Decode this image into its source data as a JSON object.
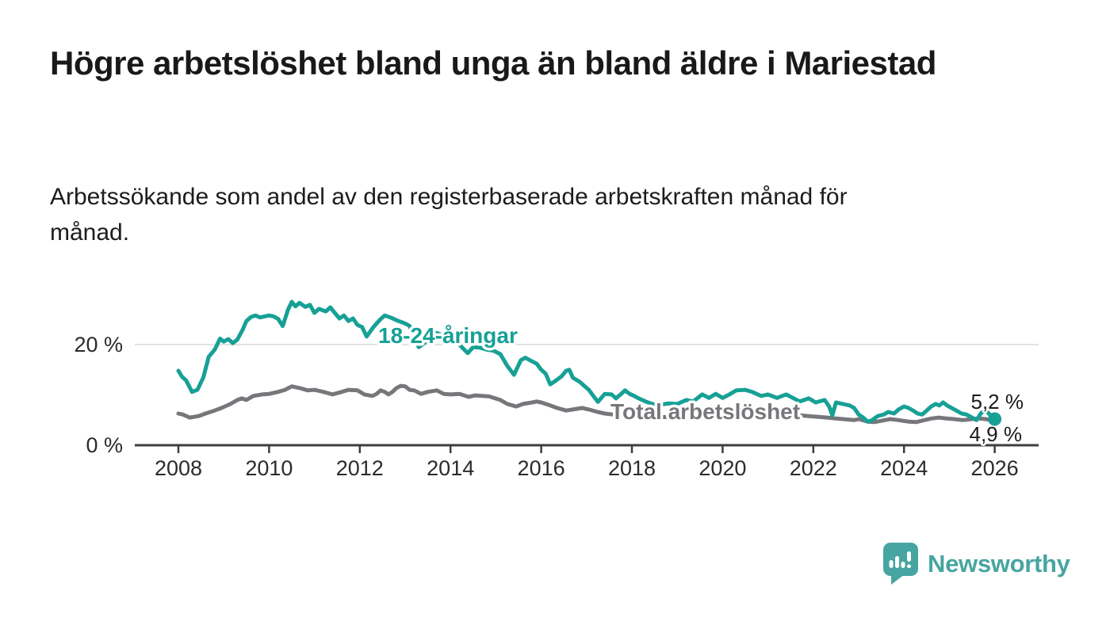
{
  "header": {
    "title": "Högre arbetslöshet bland unga än bland äldre i Mariestad",
    "subtitle": "Arbetssökande som andel av den registerbaserade arbetskraften månad för månad."
  },
  "footer": {
    "brand": "Newsworthy",
    "brand_color": "#47a5a1",
    "logo_icon": "speech-bubble-bar-chart"
  },
  "colors": {
    "youth_line": "#17a096",
    "total_line": "#77777b",
    "gridline": "#d9d9d9",
    "axis": "#3e3e3e",
    "text_dark": "#1a1a1a",
    "tick_label": "#2b2b2b"
  },
  "chart_data": {
    "type": "line",
    "title": "Högre arbetslöshet bland unga än bland äldre i Mariestad",
    "xlabel": "",
    "ylabel": "",
    "unit": "%",
    "ylim": [
      0,
      30
    ],
    "grid": "single-horizontal-gridline-at-20",
    "legend_position": "inline-labels-on-lines",
    "y_axis": {
      "ticks": [
        {
          "v": 0,
          "label": "0 %"
        },
        {
          "v": 20,
          "label": "20 %"
        }
      ],
      "gridlines": [
        20
      ]
    },
    "x_axis": {
      "ticks": [
        {
          "t": 2008,
          "label": "2008"
        },
        {
          "t": 2010,
          "label": "2010"
        },
        {
          "t": 2012,
          "label": "2012"
        },
        {
          "t": 2014,
          "label": "2014"
        },
        {
          "t": 2016,
          "label": "2016"
        },
        {
          "t": 2018,
          "label": "2018"
        },
        {
          "t": 2020,
          "label": "2020"
        },
        {
          "t": 2022,
          "label": "2022"
        },
        {
          "t": 2024,
          "label": "2024"
        },
        {
          "t": 2026,
          "label": "2026"
        }
      ]
    },
    "series": [
      {
        "id": "total",
        "name": "Total arbetslöshet",
        "color": "#77777b",
        "end_label": "4,9 %",
        "end_dot": false,
        "points": [
          [
            2008.0,
            6.3
          ],
          [
            2008.1,
            6.1
          ],
          [
            2008.25,
            5.5
          ],
          [
            2008.45,
            5.8
          ],
          [
            2008.6,
            6.3
          ],
          [
            2008.8,
            6.9
          ],
          [
            2008.95,
            7.4
          ],
          [
            2009.15,
            8.2
          ],
          [
            2009.3,
            9.0
          ],
          [
            2009.4,
            9.3
          ],
          [
            2009.5,
            9.0
          ],
          [
            2009.65,
            9.8
          ],
          [
            2009.85,
            10.1
          ],
          [
            2010.0,
            10.2
          ],
          [
            2010.2,
            10.6
          ],
          [
            2010.35,
            11.0
          ],
          [
            2010.5,
            11.7
          ],
          [
            2010.7,
            11.3
          ],
          [
            2010.85,
            10.9
          ],
          [
            2011.0,
            11.0
          ],
          [
            2011.2,
            10.6
          ],
          [
            2011.4,
            10.1
          ],
          [
            2011.6,
            10.6
          ],
          [
            2011.75,
            11.0
          ],
          [
            2011.95,
            10.9
          ],
          [
            2012.1,
            10.1
          ],
          [
            2012.28,
            9.8
          ],
          [
            2012.37,
            10.2
          ],
          [
            2012.46,
            10.9
          ],
          [
            2012.55,
            10.6
          ],
          [
            2012.63,
            10.1
          ],
          [
            2012.72,
            10.6
          ],
          [
            2012.8,
            11.3
          ],
          [
            2012.9,
            11.8
          ],
          [
            2013.0,
            11.7
          ],
          [
            2013.1,
            11.0
          ],
          [
            2013.2,
            10.9
          ],
          [
            2013.35,
            10.2
          ],
          [
            2013.5,
            10.6
          ],
          [
            2013.7,
            10.9
          ],
          [
            2013.85,
            10.2
          ],
          [
            2014.0,
            10.1
          ],
          [
            2014.2,
            10.2
          ],
          [
            2014.4,
            9.6
          ],
          [
            2014.55,
            9.9
          ],
          [
            2014.7,
            9.8
          ],
          [
            2014.85,
            9.7
          ],
          [
            2015.1,
            9.0
          ],
          [
            2015.25,
            8.2
          ],
          [
            2015.45,
            7.7
          ],
          [
            2015.6,
            8.2
          ],
          [
            2015.8,
            8.5
          ],
          [
            2015.9,
            8.7
          ],
          [
            2016.0,
            8.5
          ],
          [
            2016.2,
            7.9
          ],
          [
            2016.35,
            7.4
          ],
          [
            2016.55,
            6.9
          ],
          [
            2016.7,
            7.1
          ],
          [
            2016.9,
            7.4
          ],
          [
            2017.05,
            7.1
          ],
          [
            2017.25,
            6.6
          ],
          [
            2017.4,
            6.3
          ],
          [
            2017.6,
            6.1
          ],
          [
            2017.8,
            6.0
          ],
          [
            2018.0,
            5.9
          ],
          [
            2018.25,
            5.7
          ],
          [
            2018.5,
            5.5
          ],
          [
            2018.75,
            5.6
          ],
          [
            2019.0,
            5.5
          ],
          [
            2019.25,
            5.7
          ],
          [
            2019.5,
            5.8
          ],
          [
            2019.75,
            5.9
          ],
          [
            2020.0,
            6.0
          ],
          [
            2020.25,
            6.6
          ],
          [
            2020.5,
            6.9
          ],
          [
            2020.75,
            6.7
          ],
          [
            2021.0,
            6.5
          ],
          [
            2021.25,
            6.3
          ],
          [
            2021.5,
            6.1
          ],
          [
            2021.75,
            5.9
          ],
          [
            2022.0,
            5.7
          ],
          [
            2022.15,
            5.6
          ],
          [
            2022.3,
            5.5
          ],
          [
            2022.5,
            5.3
          ],
          [
            2022.65,
            5.2
          ],
          [
            2022.9,
            5.0
          ],
          [
            2023.0,
            5.2
          ],
          [
            2023.2,
            4.7
          ],
          [
            2023.35,
            4.6
          ],
          [
            2023.52,
            4.9
          ],
          [
            2023.7,
            5.2
          ],
          [
            2023.88,
            5.0
          ],
          [
            2024.1,
            4.7
          ],
          [
            2024.27,
            4.6
          ],
          [
            2024.45,
            5.0
          ],
          [
            2024.6,
            5.3
          ],
          [
            2024.77,
            5.5
          ],
          [
            2024.94,
            5.3
          ],
          [
            2025.1,
            5.2
          ],
          [
            2025.3,
            5.0
          ],
          [
            2025.5,
            5.2
          ],
          [
            2025.65,
            5.3
          ],
          [
            2025.8,
            5.2
          ],
          [
            2025.95,
            4.9
          ],
          [
            2026.0,
            4.9
          ]
        ]
      },
      {
        "id": "youth",
        "name": "18-24-åringar",
        "color": "#17a096",
        "end_label": "5,2 %",
        "end_dot": true,
        "points": [
          [
            2008.0,
            14.8
          ],
          [
            2008.08,
            13.6
          ],
          [
            2008.17,
            12.9
          ],
          [
            2008.3,
            10.6
          ],
          [
            2008.42,
            11.0
          ],
          [
            2008.55,
            13.5
          ],
          [
            2008.67,
            17.6
          ],
          [
            2008.8,
            19.0
          ],
          [
            2008.92,
            21.2
          ],
          [
            2009.0,
            20.6
          ],
          [
            2009.1,
            21.1
          ],
          [
            2009.2,
            20.3
          ],
          [
            2009.3,
            21.0
          ],
          [
            2009.42,
            23.0
          ],
          [
            2009.5,
            24.7
          ],
          [
            2009.6,
            25.5
          ],
          [
            2009.7,
            25.8
          ],
          [
            2009.8,
            25.4
          ],
          [
            2009.9,
            25.6
          ],
          [
            2010.0,
            25.8
          ],
          [
            2010.1,
            25.6
          ],
          [
            2010.2,
            25.1
          ],
          [
            2010.3,
            23.7
          ],
          [
            2010.42,
            27.0
          ],
          [
            2010.5,
            28.5
          ],
          [
            2010.58,
            27.6
          ],
          [
            2010.67,
            28.3
          ],
          [
            2010.8,
            27.5
          ],
          [
            2010.9,
            27.9
          ],
          [
            2011.0,
            26.3
          ],
          [
            2011.1,
            27.1
          ],
          [
            2011.25,
            26.6
          ],
          [
            2011.35,
            27.4
          ],
          [
            2011.45,
            26.3
          ],
          [
            2011.55,
            25.2
          ],
          [
            2011.65,
            25.8
          ],
          [
            2011.75,
            24.7
          ],
          [
            2011.85,
            25.2
          ],
          [
            2011.95,
            23.9
          ],
          [
            2012.05,
            23.5
          ],
          [
            2012.15,
            21.6
          ],
          [
            2012.3,
            23.5
          ],
          [
            2012.45,
            25.0
          ],
          [
            2012.55,
            25.8
          ],
          [
            2012.7,
            25.3
          ],
          [
            2012.85,
            24.7
          ],
          [
            2013.0,
            24.2
          ],
          [
            2013.1,
            23.7
          ],
          [
            2013.2,
            21.5
          ],
          [
            2013.3,
            19.5
          ],
          [
            2013.45,
            20.5
          ],
          [
            2013.55,
            21.8
          ],
          [
            2013.7,
            22.3
          ],
          [
            2013.85,
            21.8
          ],
          [
            2014.0,
            21.5
          ],
          [
            2014.1,
            21.0
          ],
          [
            2014.25,
            19.5
          ],
          [
            2014.38,
            18.3
          ],
          [
            2014.5,
            19.5
          ],
          [
            2014.65,
            19.4
          ],
          [
            2014.8,
            19.0
          ],
          [
            2014.95,
            18.8
          ],
          [
            2015.1,
            18.1
          ],
          [
            2015.25,
            15.8
          ],
          [
            2015.4,
            14.0
          ],
          [
            2015.55,
            16.9
          ],
          [
            2015.65,
            17.4
          ],
          [
            2015.75,
            16.9
          ],
          [
            2015.9,
            16.2
          ],
          [
            2016.0,
            15.0
          ],
          [
            2016.1,
            14.2
          ],
          [
            2016.2,
            12.1
          ],
          [
            2016.3,
            12.7
          ],
          [
            2016.45,
            13.7
          ],
          [
            2016.55,
            14.8
          ],
          [
            2016.62,
            15.0
          ],
          [
            2016.7,
            13.4
          ],
          [
            2016.85,
            12.6
          ],
          [
            2016.95,
            11.8
          ],
          [
            2017.05,
            11.0
          ],
          [
            2017.15,
            9.8
          ],
          [
            2017.25,
            8.6
          ],
          [
            2017.4,
            10.2
          ],
          [
            2017.55,
            10.1
          ],
          [
            2017.65,
            9.3
          ],
          [
            2017.75,
            10.1
          ],
          [
            2017.85,
            10.9
          ],
          [
            2017.95,
            10.2
          ],
          [
            2018.05,
            9.8
          ],
          [
            2018.15,
            9.3
          ],
          [
            2018.3,
            8.7
          ],
          [
            2018.45,
            8.2
          ],
          [
            2018.6,
            8.0
          ],
          [
            2018.8,
            8.3
          ],
          [
            2019.0,
            8.2
          ],
          [
            2019.2,
            9.0
          ],
          [
            2019.35,
            8.7
          ],
          [
            2019.55,
            10.1
          ],
          [
            2019.7,
            9.4
          ],
          [
            2019.85,
            10.2
          ],
          [
            2020.0,
            9.4
          ],
          [
            2020.15,
            10.1
          ],
          [
            2020.3,
            10.9
          ],
          [
            2020.5,
            11.0
          ],
          [
            2020.65,
            10.6
          ],
          [
            2020.85,
            9.8
          ],
          [
            2021.0,
            10.1
          ],
          [
            2021.2,
            9.4
          ],
          [
            2021.4,
            10.1
          ],
          [
            2021.55,
            9.4
          ],
          [
            2021.7,
            8.7
          ],
          [
            2021.9,
            9.3
          ],
          [
            2022.05,
            8.5
          ],
          [
            2022.25,
            9.0
          ],
          [
            2022.35,
            7.7
          ],
          [
            2022.42,
            5.9
          ],
          [
            2022.5,
            8.5
          ],
          [
            2022.65,
            8.2
          ],
          [
            2022.8,
            7.9
          ],
          [
            2022.9,
            7.4
          ],
          [
            2023.0,
            6.1
          ],
          [
            2023.1,
            5.5
          ],
          [
            2023.2,
            4.7
          ],
          [
            2023.3,
            5.0
          ],
          [
            2023.42,
            5.8
          ],
          [
            2023.55,
            6.1
          ],
          [
            2023.65,
            6.6
          ],
          [
            2023.78,
            6.3
          ],
          [
            2023.88,
            7.1
          ],
          [
            2024.0,
            7.7
          ],
          [
            2024.1,
            7.4
          ],
          [
            2024.2,
            6.9
          ],
          [
            2024.3,
            6.3
          ],
          [
            2024.4,
            6.1
          ],
          [
            2024.5,
            6.9
          ],
          [
            2024.6,
            7.7
          ],
          [
            2024.7,
            8.2
          ],
          [
            2024.78,
            7.9
          ],
          [
            2024.86,
            8.5
          ],
          [
            2024.95,
            7.9
          ],
          [
            2025.05,
            7.4
          ],
          [
            2025.15,
            6.9
          ],
          [
            2025.27,
            6.3
          ],
          [
            2025.38,
            6.1
          ],
          [
            2025.5,
            5.5
          ],
          [
            2025.6,
            5.0
          ],
          [
            2025.7,
            6.4
          ],
          [
            2025.8,
            6.9
          ],
          [
            2025.87,
            6.3
          ],
          [
            2025.95,
            5.5
          ],
          [
            2026.0,
            5.2
          ]
        ]
      }
    ]
  }
}
